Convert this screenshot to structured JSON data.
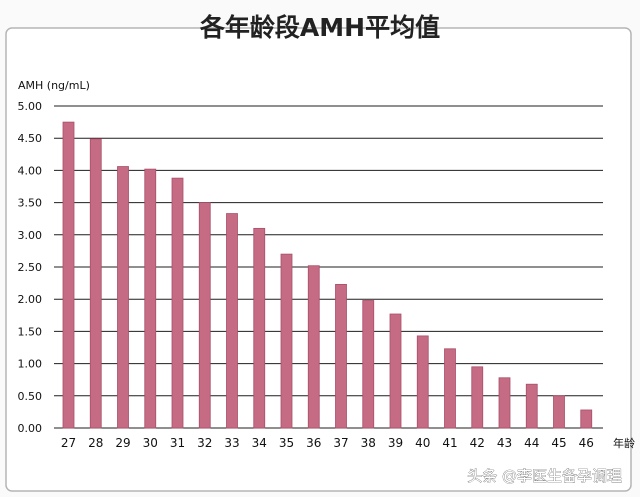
{
  "colors": {
    "bar": "#c56b84",
    "bar_stroke": "#a94f69",
    "grid": "#1f1f1f",
    "frame": "#b5b5b5",
    "text": "#111111",
    "title": "#222222",
    "watermark": "#ffffff"
  },
  "chart_data": {
    "type": "bar",
    "title": "各年龄段AMH平均值",
    "ylabel": "AMH (ng/mL)",
    "xlabel": "年龄",
    "ylim": [
      0,
      5
    ],
    "grid": true,
    "categories": [
      "27",
      "28",
      "29",
      "30",
      "31",
      "32",
      "33",
      "34",
      "35",
      "36",
      "37",
      "38",
      "39",
      "40",
      "41",
      "42",
      "43",
      "44",
      "45",
      "46"
    ],
    "values": [
      4.75,
      4.49,
      4.06,
      4.02,
      3.88,
      3.5,
      3.33,
      3.1,
      2.7,
      2.52,
      2.23,
      1.98,
      1.77,
      1.43,
      1.23,
      0.95,
      0.78,
      0.68,
      0.5,
      0.28
    ],
    "y_ticks": [
      "0.00",
      "0.50",
      "1.00",
      "1.50",
      "2.00",
      "2.50",
      "3.00",
      "3.50",
      "4.00",
      "4.50",
      "5.00"
    ]
  },
  "watermark": "头条 @李医生备孕调理"
}
